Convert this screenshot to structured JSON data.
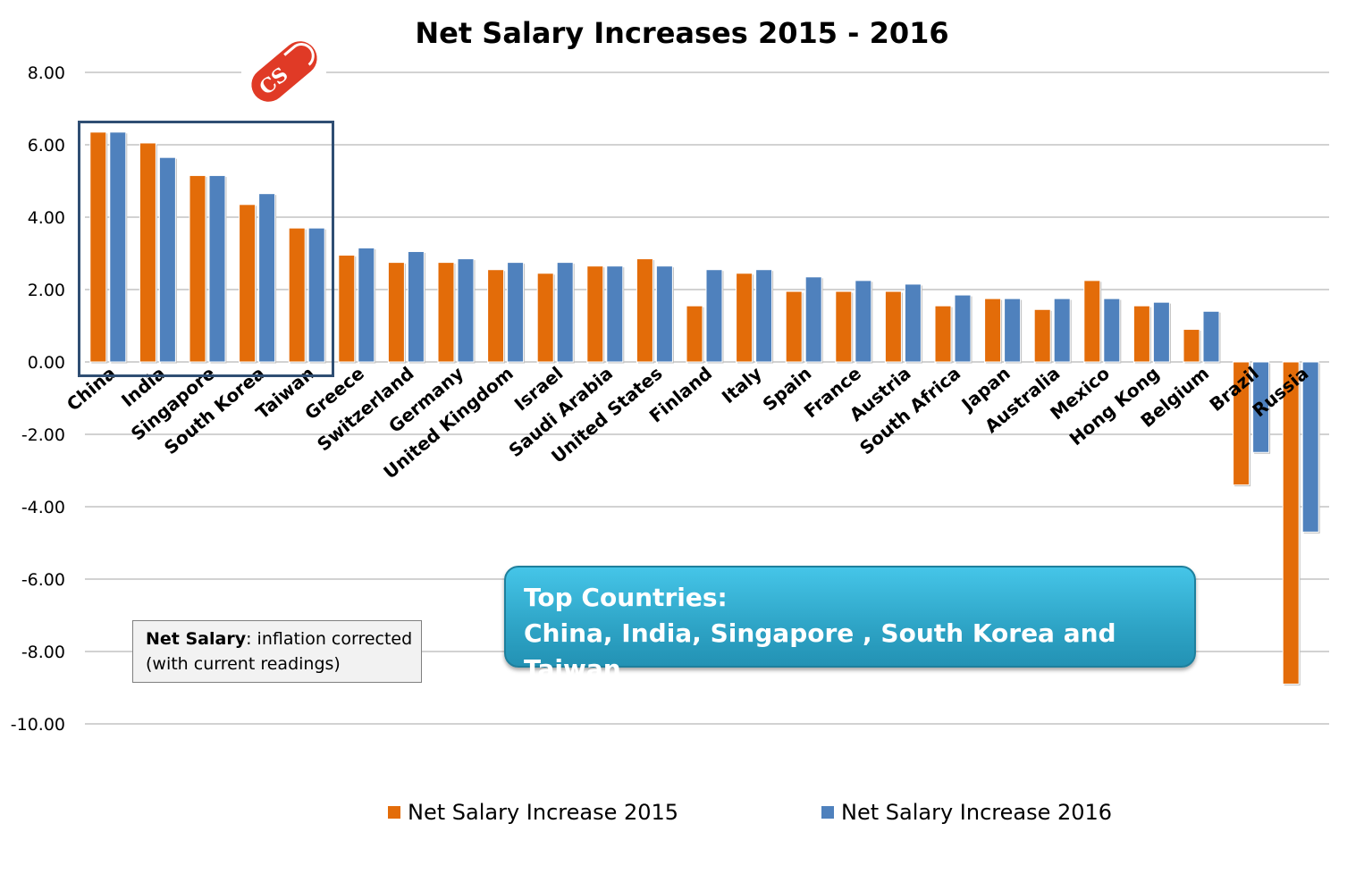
{
  "chart_data": {
    "type": "bar",
    "title": "Net Salary Increases 2015 - 2016",
    "categories": [
      "China",
      "India",
      "Singapore",
      "South Korea",
      "Taiwan",
      "Greece",
      "Switzerland",
      "Germany",
      "United Kingdom",
      "Israel",
      "Saudi Arabia",
      "United States",
      "Finland",
      "Italy",
      "Spain",
      "France",
      "Austria",
      "South Africa",
      "Japan",
      "Australia",
      "Mexico",
      "Hong Kong",
      "Belgium",
      "Brazil",
      "Russia"
    ],
    "series": [
      {
        "name": "Net Salary Increase 2015",
        "color": "#e36c09",
        "values": [
          6.35,
          6.05,
          5.15,
          4.35,
          3.7,
          2.95,
          2.75,
          2.75,
          2.55,
          2.45,
          2.65,
          2.85,
          1.55,
          2.45,
          1.95,
          1.95,
          1.95,
          1.55,
          1.75,
          1.45,
          2.25,
          1.55,
          0.9,
          -3.4,
          -8.9
        ]
      },
      {
        "name": "Net Salary Increase 2016",
        "color": "#4f81bd",
        "values": [
          6.35,
          5.65,
          5.15,
          4.65,
          3.7,
          3.15,
          3.05,
          2.85,
          2.75,
          2.75,
          2.65,
          2.65,
          2.55,
          2.55,
          2.35,
          2.25,
          2.15,
          1.85,
          1.75,
          1.75,
          1.75,
          1.65,
          1.4,
          -2.5,
          -4.7
        ]
      }
    ],
    "yticks": [
      "8.00",
      "6.00",
      "4.00",
      "2.00",
      "0.00",
      "-2.00",
      "-4.00",
      "-6.00",
      "-8.00",
      "-10.00"
    ],
    "ylim": [
      -10,
      8
    ],
    "grid": true,
    "legend": "bottom"
  },
  "note": {
    "bold": "Net Salary",
    "rest": ": inflation corrected",
    "line2": "(with current readings)"
  },
  "callout": {
    "line1": "Top Countries:",
    "line2": "China, India, Singapore , South Korea and Taiwan"
  },
  "logo": {
    "text": "CS"
  }
}
